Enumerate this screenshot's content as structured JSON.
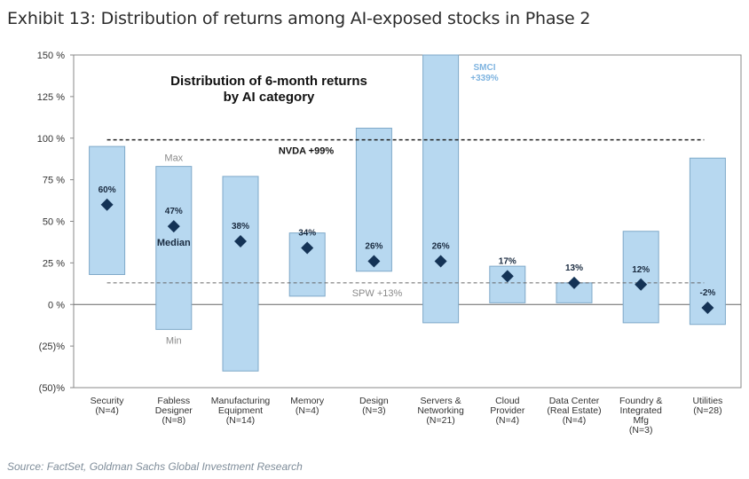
{
  "exhibit_title": "Exhibit 13: Distribution of returns among AI-exposed stocks in Phase 2",
  "source": "Source: FactSet, Goldman Sachs Global Investment Research",
  "colors": {
    "bar": "#b7d8f0",
    "bar_stroke": "#7fa9c9",
    "marker": "#143356",
    "line": "#222222",
    "smci": "#7fb4e0"
  },
  "chart_data": {
    "type": "floating-bar",
    "title": "Distribution of 6-month returns by AI category",
    "title_lines": [
      "Distribution of 6-month returns",
      "by AI category"
    ],
    "ylim": [
      -50,
      150
    ],
    "yticks": [
      -50,
      -25,
      0,
      25,
      50,
      75,
      100,
      125,
      150
    ],
    "ytick_labels": [
      "(50)%",
      "(25)%",
      "0 %",
      "25 %",
      "50 %",
      "75 %",
      "100 %",
      "125 %",
      "150 %"
    ],
    "categories": [
      {
        "lines": [
          "Security",
          "(N=4)"
        ],
        "min": 18,
        "max": 95,
        "median": 60,
        "label": "60%"
      },
      {
        "lines": [
          "Fabless",
          "Designer",
          "(N=8)"
        ],
        "min": -15,
        "max": 83,
        "median": 47,
        "label": "47%"
      },
      {
        "lines": [
          "Manufacturing",
          "Equipment",
          "(N=14)"
        ],
        "min": -40,
        "max": 77,
        "median": 38,
        "label": "38%"
      },
      {
        "lines": [
          "Memory",
          "(N=4)"
        ],
        "min": 5,
        "max": 43,
        "median": 34,
        "label": "34%"
      },
      {
        "lines": [
          "Design",
          "(N=3)"
        ],
        "min": 20,
        "max": 106,
        "median": 26,
        "label": "26%"
      },
      {
        "lines": [
          "Servers &",
          "Networking",
          "(N=21)"
        ],
        "min": -11,
        "max": 339,
        "median": 26,
        "label": "26%"
      },
      {
        "lines": [
          "Cloud",
          "Provider",
          "(N=4)"
        ],
        "min": 1,
        "max": 23,
        "median": 17,
        "label": "17%"
      },
      {
        "lines": [
          "Data Center",
          "(Real Estate)",
          "(N=4)"
        ],
        "min": 1,
        "max": 13,
        "median": 13,
        "label": "13%"
      },
      {
        "lines": [
          "Foundry &",
          "Integrated",
          "Mfg",
          "(N=3)"
        ],
        "min": -11,
        "max": 44,
        "median": 12,
        "label": "12%"
      },
      {
        "lines": [
          "Utilities",
          "(N=28)"
        ],
        "min": -12,
        "max": 88,
        "median": -2,
        "label": "-2%"
      }
    ],
    "reference_lines": [
      {
        "name": "NVDA",
        "value": 99,
        "label": "NVDA +99%"
      },
      {
        "name": "SPW",
        "value": 13,
        "label": "SPW +13%"
      }
    ],
    "annotations": {
      "smci": [
        "SMCI",
        "+339%"
      ],
      "max_label": "Max",
      "median_label": "Median",
      "min_label": "Min"
    }
  }
}
